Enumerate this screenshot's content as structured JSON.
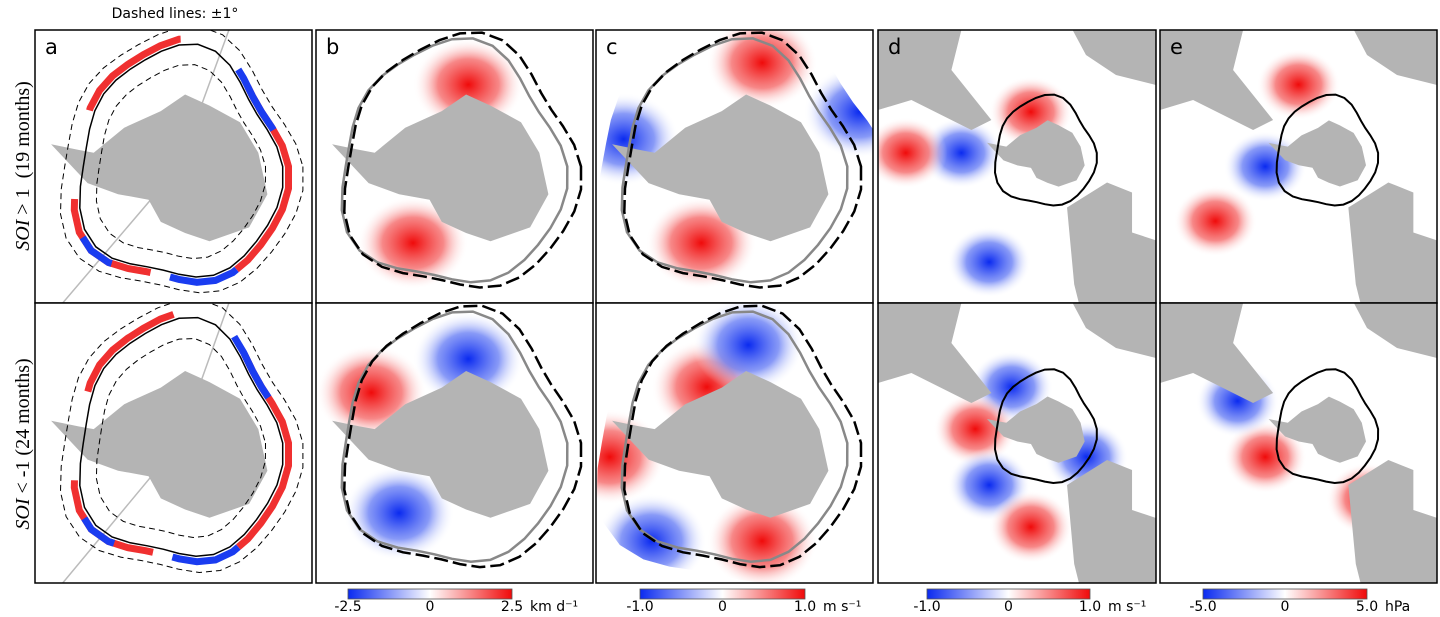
{
  "header": {
    "note": "Dashed lines: ±1°"
  },
  "rows": [
    {
      "label_italic": "SOI",
      "label_rest": " > 1  (19 months)"
    },
    {
      "label_italic": "SOI",
      "label_rest": " < -1 (24 months)"
    }
  ],
  "panels": [
    {
      "label": "a"
    },
    {
      "label": "b"
    },
    {
      "label": "c"
    },
    {
      "label": "d"
    },
    {
      "label": "e"
    }
  ],
  "colorbars": [
    {
      "ticks": [
        "-2.5",
        "0",
        "2.5"
      ],
      "unit": "km d⁻¹"
    },
    {
      "ticks": [
        "-1.0",
        "0",
        "1.0"
      ],
      "unit": "m s⁻¹"
    },
    {
      "ticks": [
        "-1.0",
        "0",
        "1.0"
      ],
      "unit": "m s⁻¹"
    },
    {
      "ticks": [
        "-5.0",
        "0",
        "5.0"
      ],
      "unit": "hPa"
    }
  ]
}
